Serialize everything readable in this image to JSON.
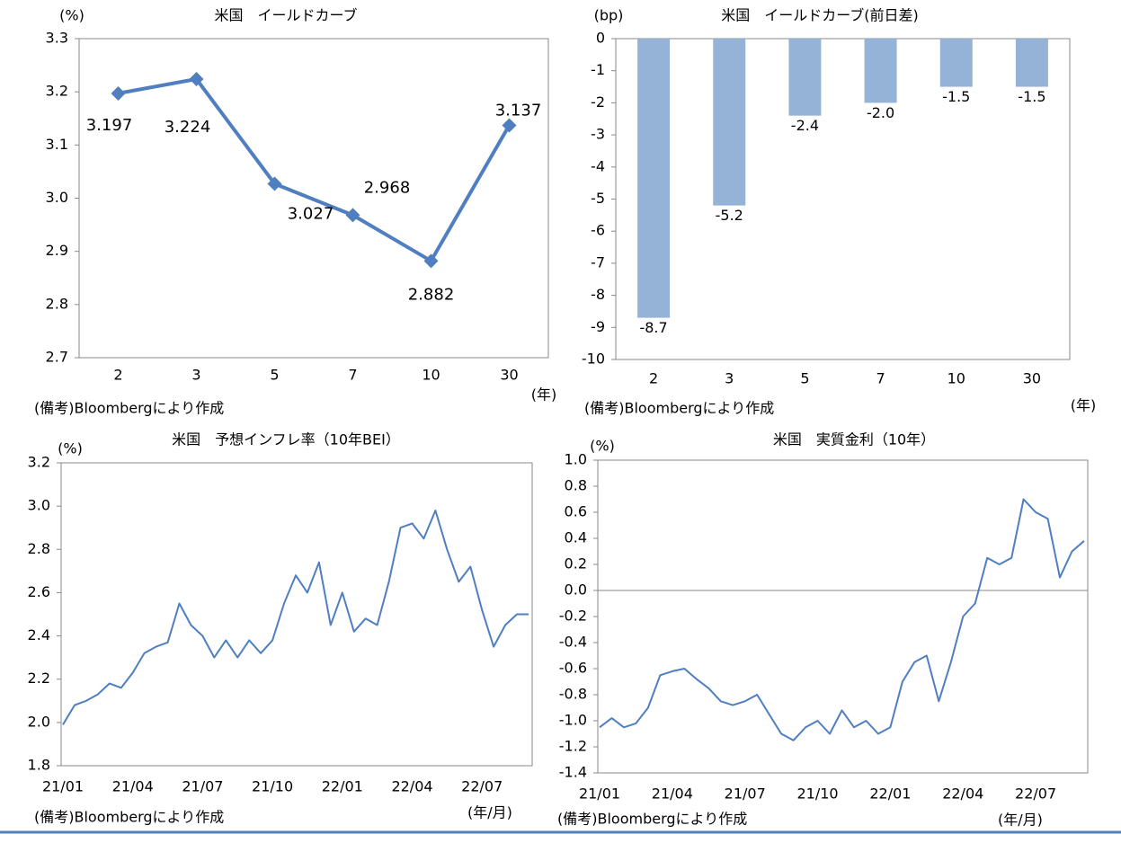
{
  "chart_data": [
    {
      "type": "line",
      "title": "米国　イールドカーブ",
      "y_unit": "(%)",
      "x_unit": "(年)",
      "source": "(備考)Bloombergにより作成",
      "categories": [
        "2",
        "3",
        "5",
        "7",
        "10",
        "30"
      ],
      "values": [
        3.197,
        3.224,
        3.027,
        2.968,
        2.882,
        3.137
      ],
      "color": "#4f7fc0",
      "marker": "diamond",
      "ylim": [
        2.7,
        3.3
      ],
      "yticks": [
        2.7,
        2.8,
        2.9,
        {
          "value": 3,
          "label": "3.0"
        },
        3.1,
        3.2,
        3.3
      ]
    },
    {
      "type": "bar",
      "title": "米国　イールドカーブ(前日差)",
      "y_unit": "(bp)",
      "x_unit": "(年)",
      "source": "(備考)Bloombergにより作成",
      "categories": [
        "2",
        "3",
        "5",
        "7",
        "10",
        "30"
      ],
      "values": [
        -8.7,
        -5.2,
        -2.4,
        -2.0,
        -1.5,
        -1.5
      ],
      "value_labels": [
        "-8.7",
        "-5.2",
        "-2.4",
        "-2.0",
        "-1.5",
        "-1.5"
      ],
      "color": "#95b3d7",
      "ylim": [
        -10,
        0
      ],
      "yticks": [
        0,
        -1,
        -2,
        -3,
        -4,
        -5,
        -6,
        -7,
        -8,
        -9,
        -10
      ]
    },
    {
      "type": "line",
      "title": "米国　予想インフレ率（10年BEI）",
      "y_unit": "(%)",
      "x_unit": "(年/月)",
      "source": "(備考)Bloombergにより作成",
      "categories": [
        "21/01",
        null,
        null,
        null,
        null,
        null,
        "21/04",
        null,
        null,
        null,
        null,
        null,
        "21/07",
        null,
        null,
        null,
        null,
        null,
        "21/10",
        null,
        null,
        null,
        null,
        null,
        "22/01",
        null,
        null,
        null,
        null,
        null,
        "22/04",
        null,
        null,
        null,
        null,
        null,
        "22/07",
        null,
        null,
        null,
        null
      ],
      "values": [
        1.99,
        2.08,
        2.1,
        2.13,
        2.18,
        2.16,
        2.23,
        2.32,
        2.35,
        2.37,
        2.55,
        2.45,
        2.4,
        2.3,
        2.38,
        2.3,
        2.38,
        2.32,
        2.38,
        2.55,
        2.68,
        2.6,
        2.74,
        2.45,
        2.6,
        2.42,
        2.48,
        2.45,
        2.65,
        2.9,
        2.92,
        2.85,
        2.98,
        2.8,
        2.65,
        2.72,
        2.52,
        2.35,
        2.45,
        2.5,
        2.5
      ],
      "color": "#4f7fc0",
      "ylim": [
        1.8,
        3.2
      ],
      "yticks": [
        1.8,
        {
          "value": 2,
          "label": "2.0"
        },
        2.2,
        2.4,
        2.6,
        2.8,
        {
          "value": 3,
          "label": "3.0"
        },
        3.2
      ]
    },
    {
      "type": "line",
      "title": "米国　実質金利（10年）",
      "y_unit": "(%)",
      "x_unit": "(年/月)",
      "source": "(備考)Bloombergにより作成",
      "categories": [
        "21/01",
        null,
        null,
        null,
        null,
        null,
        "21/04",
        null,
        null,
        null,
        null,
        null,
        "21/07",
        null,
        null,
        null,
        null,
        null,
        "21/10",
        null,
        null,
        null,
        null,
        null,
        "22/01",
        null,
        null,
        null,
        null,
        null,
        "22/04",
        null,
        null,
        null,
        null,
        null,
        "22/07",
        null,
        null,
        null,
        null
      ],
      "values": [
        -1.05,
        -0.98,
        -1.05,
        -1.02,
        -0.9,
        -0.65,
        -0.62,
        -0.6,
        -0.68,
        -0.75,
        -0.85,
        -0.88,
        -0.85,
        -0.8,
        -0.95,
        -1.1,
        -1.15,
        -1.05,
        -1.0,
        -1.1,
        -0.92,
        -1.05,
        -1.0,
        -1.1,
        -1.05,
        -0.7,
        -0.55,
        -0.5,
        -0.85,
        -0.55,
        -0.2,
        -0.1,
        0.25,
        0.2,
        0.25,
        0.7,
        0.6,
        0.55,
        0.1,
        0.3,
        0.38
      ],
      "color": "#4f7fc0",
      "ylim": [
        -1.4,
        1.0
      ],
      "yticks": [
        {
          "value": 1,
          "label": "1.0"
        },
        0.8,
        0.6,
        0.4,
        0.2,
        {
          "value": 0,
          "label": "0.0"
        },
        -0.2,
        -0.4,
        -0.6,
        -0.8,
        {
          "value": -1,
          "label": "-1.0"
        },
        -1.2,
        -1.4
      ]
    }
  ]
}
